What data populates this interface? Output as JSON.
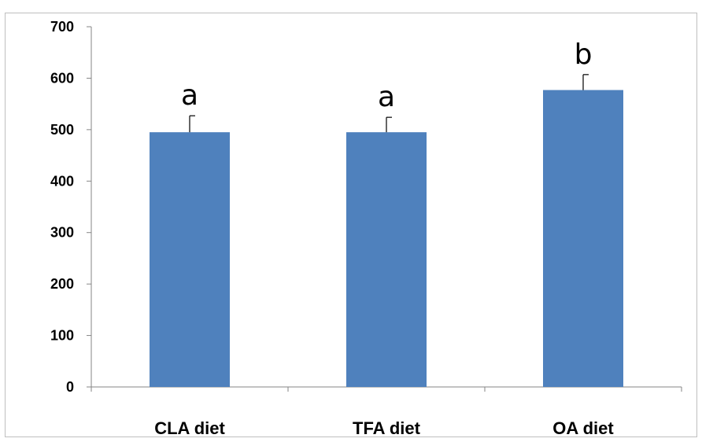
{
  "chart_data": {
    "type": "bar",
    "title": "",
    "xlabel": "",
    "ylabel": "",
    "categories": [
      "CLA diet",
      "TFA diet",
      "OA diet"
    ],
    "values": [
      495,
      495,
      577
    ],
    "error_bars": [
      32,
      29,
      30
    ],
    "significance_labels": [
      "a",
      "a",
      "b"
    ],
    "ylim": [
      0,
      700
    ],
    "yticks": [
      "0",
      "100",
      "200",
      "300",
      "400",
      "500",
      "600",
      "700"
    ],
    "bar_color": "#4f81bd",
    "grid": false,
    "legend": "none"
  }
}
